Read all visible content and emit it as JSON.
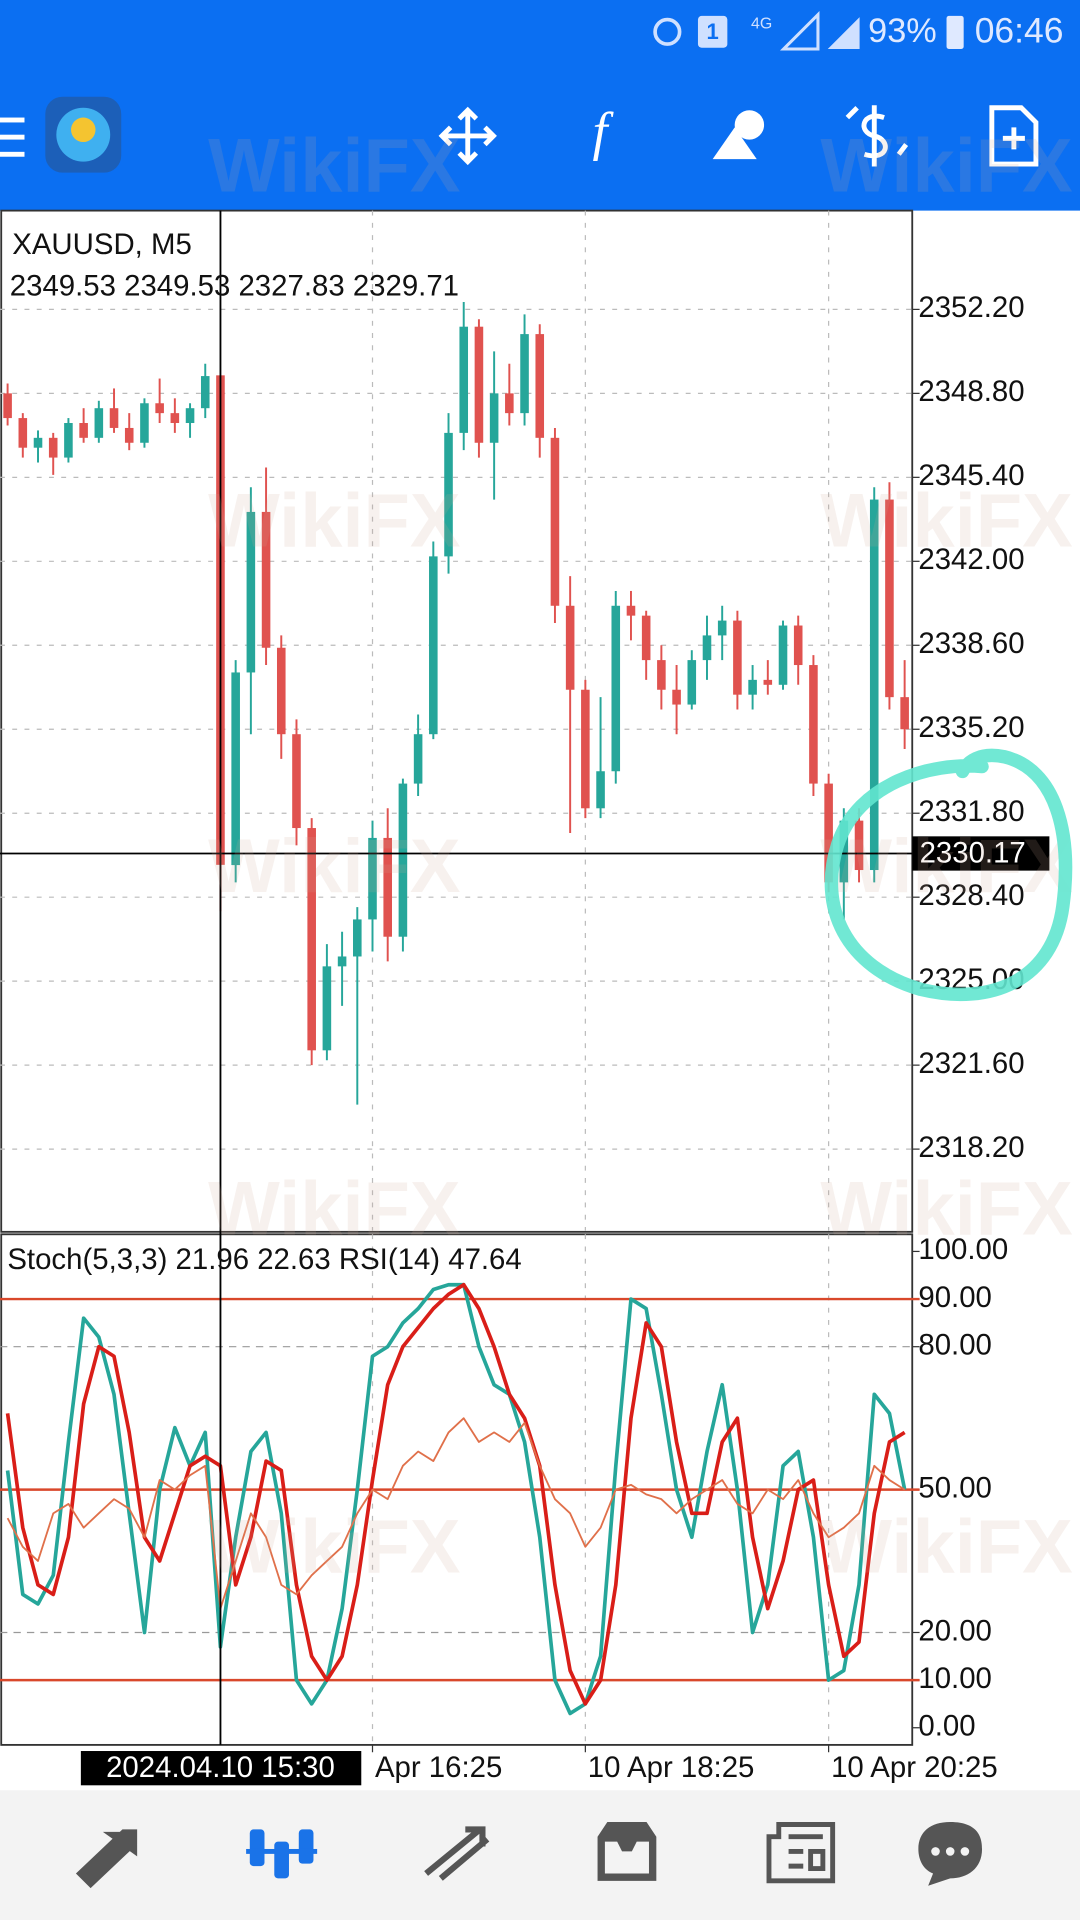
{
  "status_bar": {
    "badge": "1",
    "network": "4G",
    "battery": "93%",
    "time": "06:46"
  },
  "watermark": "WikiFX",
  "chart_data": [
    {
      "type": "candlestick",
      "title": "XAUUSD, M5",
      "subtitle": "2349.53 2349.53 2327.83 2329.71",
      "up_color": "#26a69a",
      "down_color": "#e0524f",
      "values": [
        [
          2348.8,
          2349.2,
          2347.5,
          2347.8
        ],
        [
          2347.8,
          2348.0,
          2346.2,
          2346.6
        ],
        [
          2346.6,
          2347.3,
          2346.0,
          2347.0
        ],
        [
          2347.0,
          2347.2,
          2345.5,
          2346.2
        ],
        [
          2346.2,
          2347.8,
          2346.0,
          2347.6
        ],
        [
          2347.6,
          2348.2,
          2346.8,
          2347.0
        ],
        [
          2347.0,
          2348.5,
          2346.8,
          2348.2
        ],
        [
          2348.2,
          2349.0,
          2347.2,
          2347.4
        ],
        [
          2347.4,
          2348.0,
          2346.5,
          2346.8
        ],
        [
          2346.8,
          2348.6,
          2346.6,
          2348.4
        ],
        [
          2348.4,
          2349.4,
          2347.6,
          2348.0
        ],
        [
          2348.0,
          2348.6,
          2347.2,
          2347.6
        ],
        [
          2347.6,
          2348.4,
          2347.0,
          2348.2
        ],
        [
          2348.2,
          2350.0,
          2347.8,
          2349.5
        ],
        [
          2349.53,
          2349.53,
          2327.83,
          2329.71
        ],
        [
          2329.7,
          2338.0,
          2329.0,
          2337.5
        ],
        [
          2337.5,
          2345.0,
          2335.0,
          2344.0
        ],
        [
          2344.0,
          2345.8,
          2337.8,
          2338.5
        ],
        [
          2338.5,
          2339.0,
          2334.0,
          2335.0
        ],
        [
          2335.0,
          2335.6,
          2330.5,
          2331.2
        ],
        [
          2331.2,
          2331.6,
          2321.6,
          2322.2
        ],
        [
          2322.2,
          2326.5,
          2321.8,
          2325.6
        ],
        [
          2325.6,
          2327.0,
          2324.0,
          2326.0
        ],
        [
          2326.0,
          2328.0,
          2320.0,
          2327.5
        ],
        [
          2327.5,
          2331.5,
          2326.2,
          2330.8
        ],
        [
          2330.8,
          2332.0,
          2325.8,
          2326.8
        ],
        [
          2326.8,
          2333.2,
          2326.2,
          2333.0
        ],
        [
          2333.0,
          2335.8,
          2332.5,
          2335.0
        ],
        [
          2335.0,
          2342.8,
          2334.8,
          2342.2
        ],
        [
          2342.2,
          2348.0,
          2341.5,
          2347.2
        ],
        [
          2347.2,
          2352.5,
          2346.5,
          2351.5
        ],
        [
          2351.5,
          2351.8,
          2346.2,
          2346.8
        ],
        [
          2346.8,
          2350.5,
          2344.5,
          2348.8
        ],
        [
          2348.8,
          2350.0,
          2347.5,
          2348.0
        ],
        [
          2348.0,
          2352.0,
          2347.5,
          2351.2
        ],
        [
          2351.2,
          2351.6,
          2346.2,
          2347.0
        ],
        [
          2347.0,
          2347.4,
          2339.5,
          2340.2
        ],
        [
          2340.2,
          2341.4,
          2331.0,
          2336.8
        ],
        [
          2336.8,
          2337.2,
          2331.6,
          2332.0
        ],
        [
          2332.0,
          2336.5,
          2331.6,
          2333.5
        ],
        [
          2333.5,
          2340.8,
          2333.0,
          2340.2
        ],
        [
          2340.2,
          2340.8,
          2338.8,
          2339.8
        ],
        [
          2339.8,
          2340.0,
          2337.2,
          2338.0
        ],
        [
          2338.0,
          2338.6,
          2336.0,
          2336.8
        ],
        [
          2336.8,
          2337.8,
          2335.0,
          2336.2
        ],
        [
          2336.2,
          2338.4,
          2336.0,
          2338.0
        ],
        [
          2338.0,
          2339.8,
          2337.2,
          2339.0
        ],
        [
          2339.0,
          2340.2,
          2338.0,
          2339.6
        ],
        [
          2339.6,
          2340.0,
          2336.0,
          2336.6
        ],
        [
          2336.6,
          2337.8,
          2336.0,
          2337.2
        ],
        [
          2337.2,
          2338.0,
          2336.6,
          2337.0
        ],
        [
          2337.0,
          2339.6,
          2336.8,
          2339.4
        ],
        [
          2339.4,
          2339.8,
          2337.0,
          2337.8
        ],
        [
          2337.8,
          2338.2,
          2332.5,
          2333.0
        ],
        [
          2333.0,
          2333.4,
          2328.6,
          2329.0
        ],
        [
          2329.0,
          2332.0,
          2327.5,
          2331.5
        ],
        [
          2331.5,
          2332.0,
          2329.0,
          2329.5
        ],
        [
          2329.5,
          2345.0,
          2329.0,
          2344.5
        ],
        [
          2344.5,
          2345.2,
          2336.0,
          2336.5
        ],
        [
          2336.5,
          2338.0,
          2334.4,
          2335.2
        ]
      ],
      "ylim": [
        2314.9,
        2356.2
      ],
      "yticks": [
        {
          "value": 2352.2,
          "label": "2352.20"
        },
        {
          "value": 2348.8,
          "label": "2348.80"
        },
        {
          "value": 2345.4,
          "label": "2345.40"
        },
        {
          "value": 2342,
          "label": "2342.00"
        },
        {
          "value": 2338.6,
          "label": "2338.60"
        },
        {
          "value": 2335.2,
          "label": "2335.20"
        },
        {
          "value": 2331.8,
          "label": "2331.80"
        },
        {
          "value": 2328.4,
          "label": "2328.40"
        },
        {
          "value": 2325,
          "label": "2325.00"
        },
        {
          "value": 2321.6,
          "label": "2321.60"
        },
        {
          "value": 2318.2,
          "label": "2318.20"
        }
      ],
      "crosshair": 2330.17,
      "grid": true
    },
    {
      "type": "line",
      "title": "Stoch(5,3,3) 21.96 22.63 RSI(14) 47.64",
      "categories": [
        null,
        null,
        null,
        null,
        null,
        null,
        null,
        null,
        null,
        null,
        null,
        null,
        null,
        null,
        "2024.04.10 15:30",
        null,
        null,
        null,
        null,
        null,
        null,
        null,
        null,
        null,
        "Apr 16:25",
        null,
        null,
        null,
        null,
        null,
        null,
        null,
        null,
        null,
        null,
        null,
        null,
        null,
        "10 Apr 18:25",
        null,
        null,
        null,
        null,
        null,
        null,
        null,
        null,
        null,
        null,
        null,
        null,
        null,
        null,
        null,
        "10 Apr 20:25",
        null,
        null,
        null,
        null,
        null
      ],
      "series": [
        {
          "color": "#26a69a",
          "width": 3,
          "values": [
            54,
            28,
            26,
            32,
            60,
            86,
            82,
            70,
            45,
            20,
            50,
            63,
            55,
            62,
            17,
            40,
            58,
            62,
            45,
            10,
            5,
            10,
            25,
            50,
            78,
            80,
            85,
            88,
            92,
            93,
            93,
            80,
            72,
            70,
            60,
            40,
            10,
            3,
            5,
            15,
            55,
            90,
            88,
            70,
            50,
            40,
            58,
            72,
            50,
            20,
            30,
            55,
            58,
            40,
            10,
            12,
            30,
            70,
            66,
            50
          ]
        },
        {
          "color": "#d91e18",
          "width": 3,
          "values": [
            66,
            42,
            30,
            28,
            40,
            68,
            80,
            78,
            62,
            40,
            35,
            45,
            55,
            57,
            55,
            30,
            40,
            56,
            54,
            30,
            15,
            10,
            15,
            30,
            52,
            72,
            80,
            84,
            88,
            91,
            93,
            88,
            80,
            70,
            65,
            55,
            30,
            12,
            5,
            10,
            30,
            65,
            85,
            80,
            60,
            45,
            45,
            60,
            65,
            40,
            25,
            35,
            50,
            52,
            30,
            15,
            18,
            45,
            60,
            62
          ]
        },
        {
          "color": "#e0704a",
          "width": 1.5,
          "values": [
            44,
            38,
            35,
            45,
            47,
            42,
            45,
            48,
            46,
            40,
            52,
            50,
            53,
            55,
            25,
            35,
            45,
            40,
            30,
            28,
            32,
            35,
            38,
            45,
            50,
            48,
            55,
            58,
            56,
            62,
            65,
            60,
            62,
            60,
            64,
            55,
            48,
            45,
            38,
            42,
            50,
            51,
            49,
            48,
            45,
            48,
            50,
            52,
            47,
            45,
            50,
            48,
            52,
            45,
            40,
            42,
            45,
            55,
            52,
            50
          ]
        }
      ],
      "ylim": [
        -3.6,
        103.6
      ],
      "yticks": [
        {
          "value": 100,
          "label": "100.00"
        },
        {
          "value": 90,
          "label": "90.00"
        },
        {
          "value": 80,
          "label": "80.00"
        },
        {
          "value": 50,
          "label": "50.00"
        },
        {
          "value": 20,
          "label": "20.00"
        },
        {
          "value": 10,
          "label": "10.00"
        },
        {
          "value": 0,
          "label": "0.00"
        }
      ],
      "levels": [
        90,
        50,
        10
      ],
      "level_color": "#d9482b",
      "dashed_levels": [
        80,
        20
      ]
    }
  ]
}
